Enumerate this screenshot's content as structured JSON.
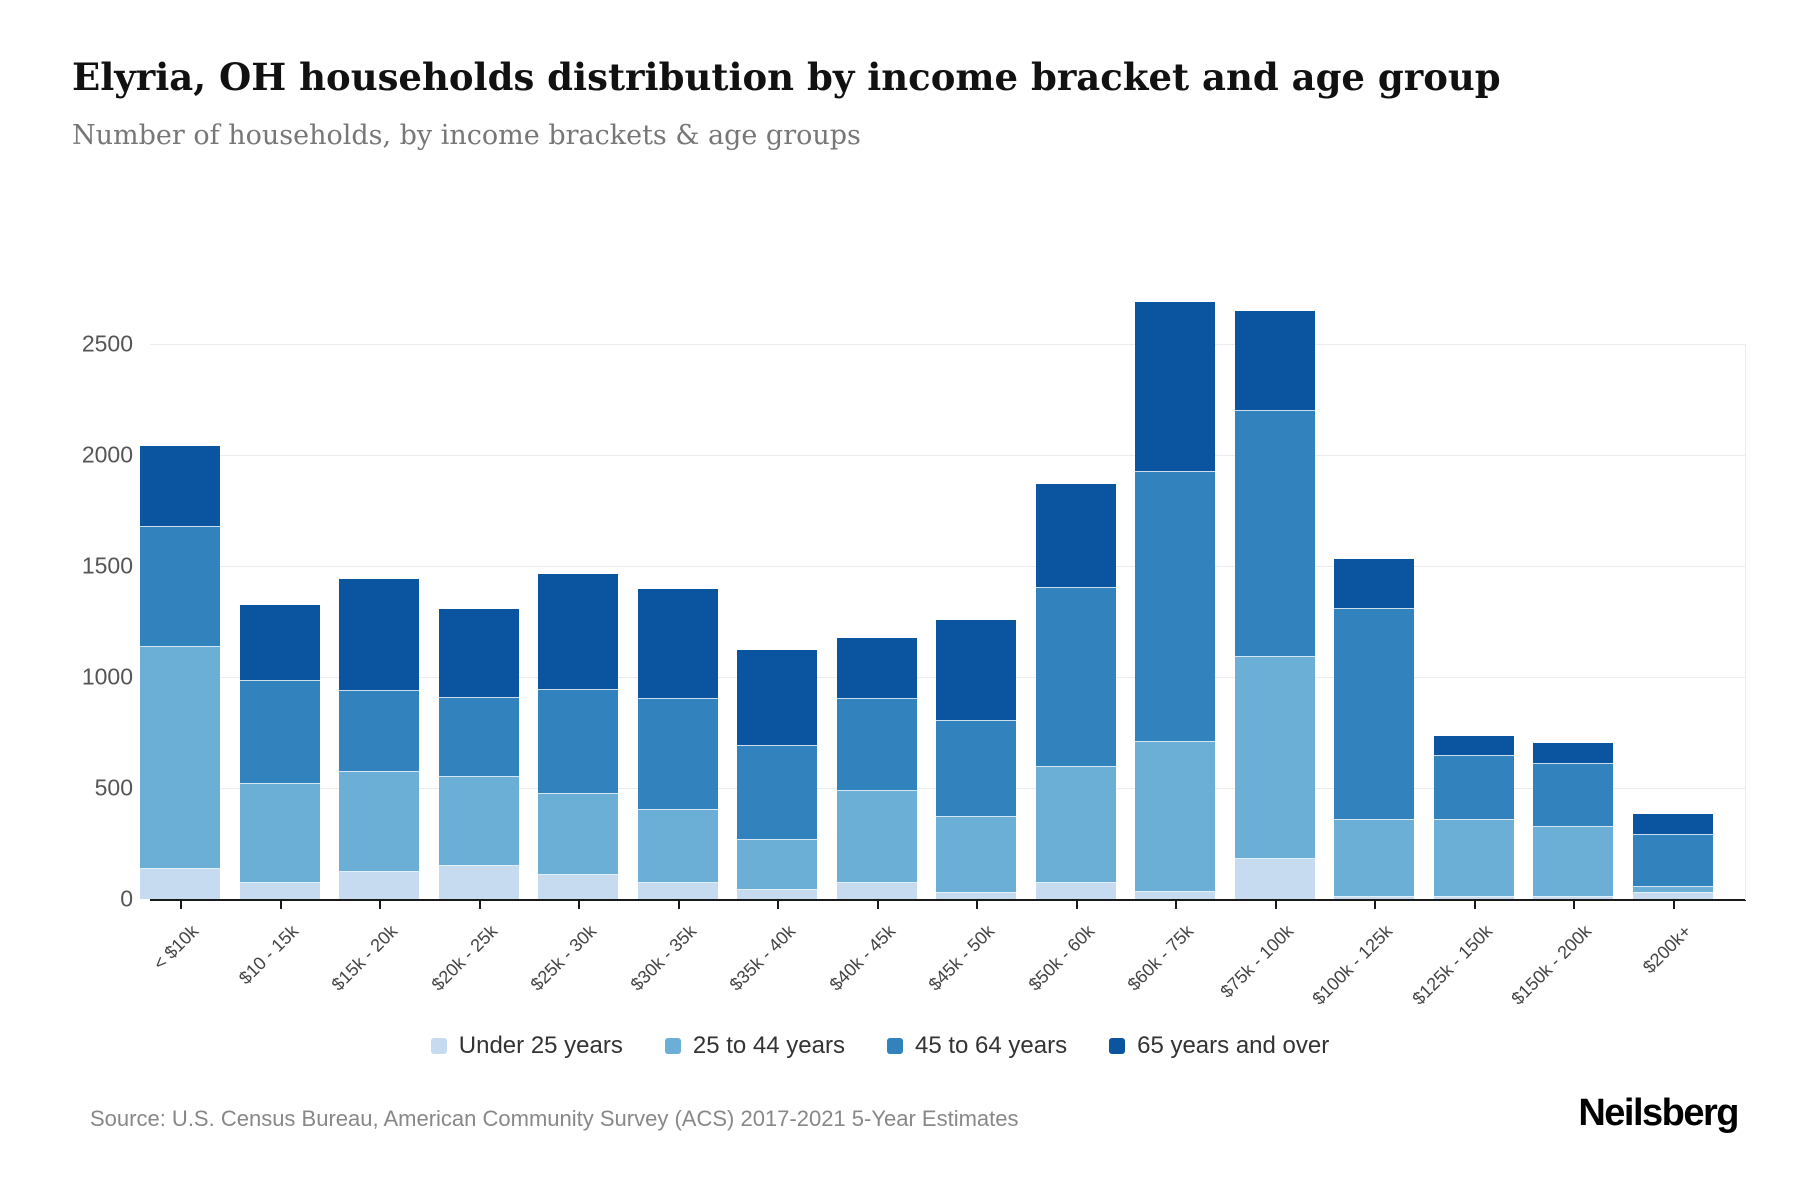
{
  "header": {
    "title": "Elyria, OH households distribution by income bracket and age group",
    "subtitle": "Number of households, by income brackets & age groups"
  },
  "footer": {
    "source": "Source: U.S. Census Bureau, American Community Survey (ACS) 2017-2021 5-Year Estimates",
    "logo": "Neilsberg"
  },
  "chart_data": {
    "type": "bar",
    "stacked": true,
    "title": "Elyria, OH households distribution by income bracket and age group",
    "xlabel": "",
    "ylabel": "",
    "ylim": [
      0,
      2500
    ],
    "yticks": [
      0,
      500,
      1000,
      1500,
      2000,
      2500
    ],
    "grid": true,
    "legend_position": "bottom",
    "categories": [
      "< $10k",
      "$10 - 15k",
      "$15k - 20k",
      "$20k - 25k",
      "$25k - 30k",
      "$30k - 35k",
      "$35k - 40k",
      "$40k - 45k",
      "$45k - 50k",
      "$50k - 60k",
      "$60k - 75k",
      "$75k - 100k",
      "$100k - 125k",
      "$125k - 150k",
      "$150k - 200k",
      "$200k+"
    ],
    "series": [
      {
        "name": "Under 25 years",
        "color": "#c6dbef",
        "values": [
          135,
          70,
          120,
          150,
          110,
          70,
          40,
          70,
          25,
          70,
          30,
          180,
          10,
          10,
          10,
          25
        ]
      },
      {
        "name": "25 to 44 years",
        "color": "#6baed6",
        "values": [
          1000,
          450,
          450,
          400,
          365,
          330,
          225,
          415,
          345,
          525,
          675,
          910,
          345,
          345,
          315,
          30
        ]
      },
      {
        "name": "45 to 64 years",
        "color": "#3182bd",
        "values": [
          540,
          460,
          365,
          355,
          465,
          500,
          425,
          415,
          430,
          805,
          1220,
          1110,
          950,
          290,
          285,
          235
        ]
      },
      {
        "name": "65 years and over",
        "color": "#0b55a0",
        "values": [
          365,
          345,
          505,
          400,
          525,
          495,
          430,
          275,
          455,
          470,
          765,
          450,
          225,
          90,
          95,
          95
        ]
      }
    ]
  }
}
